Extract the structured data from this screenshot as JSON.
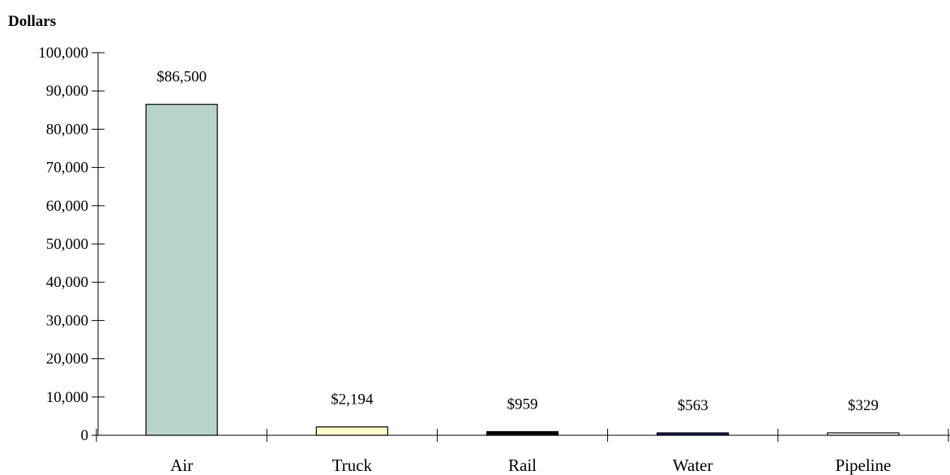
{
  "chart_data": {
    "type": "bar",
    "title": "",
    "xlabel": "",
    "ylabel": "Dollars",
    "ylim": [
      0,
      100000
    ],
    "yticks": [
      "100,000",
      "90,000",
      "80,000",
      "70,000",
      "60,000",
      "50,000",
      "40,000",
      "30,000",
      "20,000",
      "10,000",
      "0"
    ],
    "categories": [
      "Air",
      "Truck",
      "Rail",
      "Water",
      "Pipeline"
    ],
    "values": [
      86500,
      2194,
      959,
      563,
      329
    ],
    "data_labels": [
      "$86,500",
      "$2,194",
      "$959",
      "$563",
      "$329"
    ],
    "colors": [
      "#b8d4c8",
      "#ffffcc",
      "#000000",
      "#1a1a66",
      "#ffffff"
    ],
    "grid": false,
    "legend": "none"
  }
}
